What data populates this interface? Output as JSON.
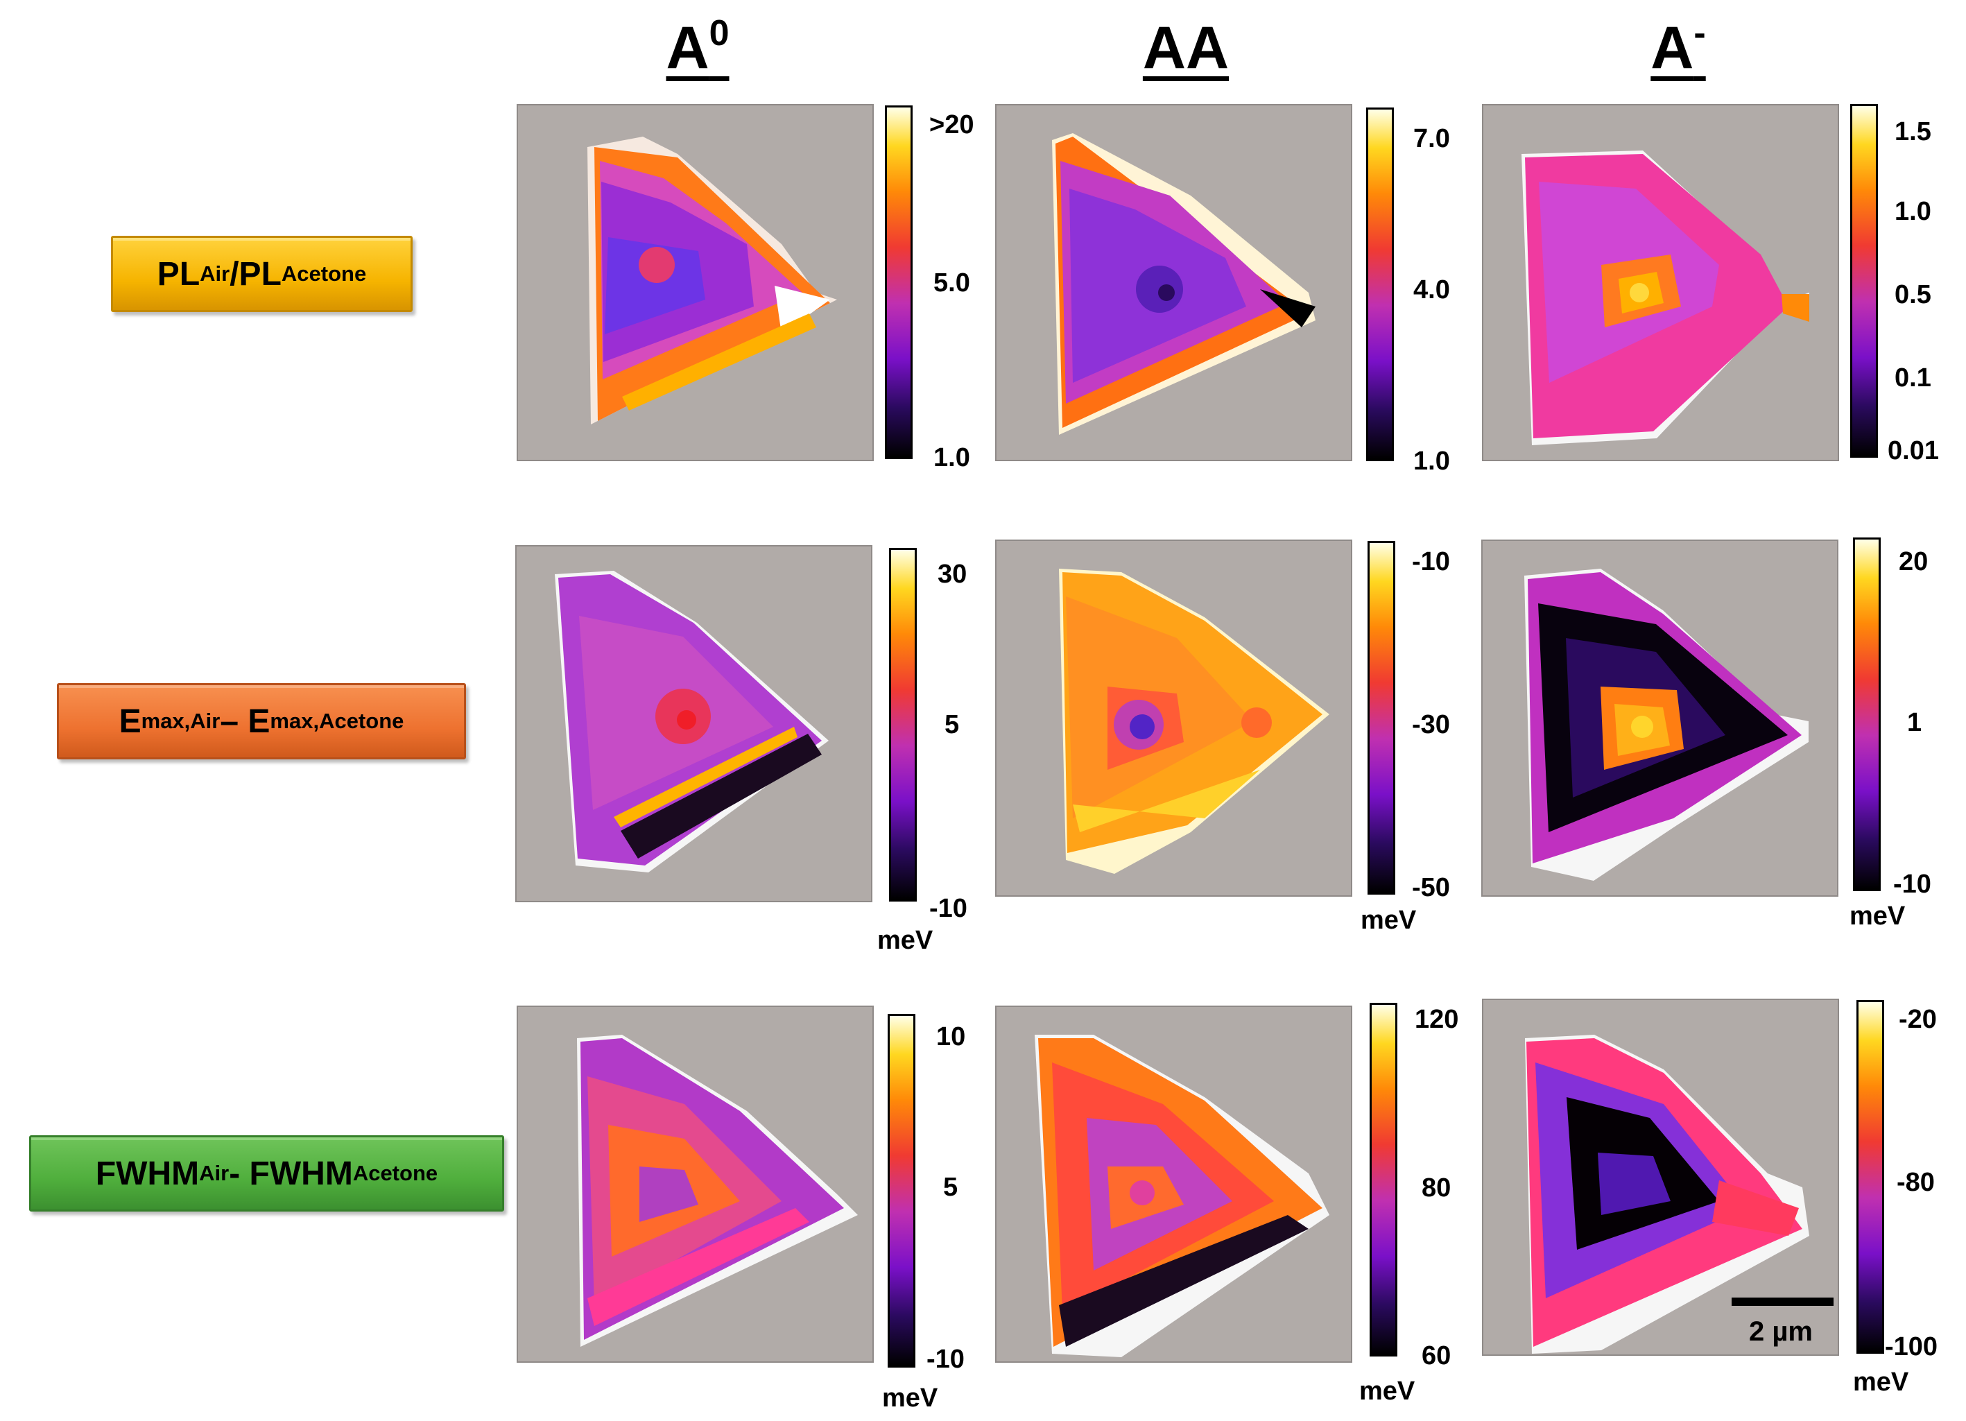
{
  "columns": [
    {
      "base": "A",
      "sup": "0"
    },
    {
      "base": "AA",
      "sup": ""
    },
    {
      "base": "A",
      "sup": "-"
    }
  ],
  "rows": [
    {
      "label": [
        [
          "PL",
          ""
        ],
        [
          "Air",
          "sub"
        ],
        [
          "/PL",
          ""
        ],
        [
          "Acetone",
          "sub"
        ]
      ],
      "color": "yellow"
    },
    {
      "label": [
        [
          "E",
          ""
        ],
        [
          "max,Air",
          "sub"
        ],
        [
          " – E",
          ""
        ],
        [
          "max,Acetone",
          "sub"
        ]
      ],
      "color": "orange"
    },
    {
      "label": [
        [
          "FWHM",
          ""
        ],
        [
          "Air",
          "sub"
        ],
        [
          " - FWHM",
          ""
        ],
        [
          "Acetone",
          "sub"
        ]
      ],
      "color": "green"
    }
  ],
  "panels": [
    {
      "ticks": [
        ">20",
        "5.0",
        "1.0"
      ],
      "unit": ""
    },
    {
      "ticks": [
        "7.0",
        "4.0",
        "1.0"
      ],
      "unit": ""
    },
    {
      "ticks": [
        "1.5",
        "1.0",
        "0.5",
        "0.1",
        "0.01"
      ],
      "unit": ""
    },
    {
      "ticks": [
        "30",
        "5",
        "-10"
      ],
      "unit": "meV"
    },
    {
      "ticks": [
        "-10",
        "-30",
        "-50"
      ],
      "unit": "meV"
    },
    {
      "ticks": [
        "20",
        "1",
        "-10"
      ],
      "unit": "meV"
    },
    {
      "ticks": [
        "10",
        "5",
        "-10"
      ],
      "unit": "meV"
    },
    {
      "ticks": [
        "120",
        "80",
        "60"
      ],
      "unit": "meV"
    },
    {
      "ticks": [
        "-20",
        "-80",
        "-100"
      ],
      "unit": "meV"
    }
  ],
  "scale_bar": {
    "label": "2 µm"
  },
  "colors": {
    "map_background": "#b1aba8"
  }
}
